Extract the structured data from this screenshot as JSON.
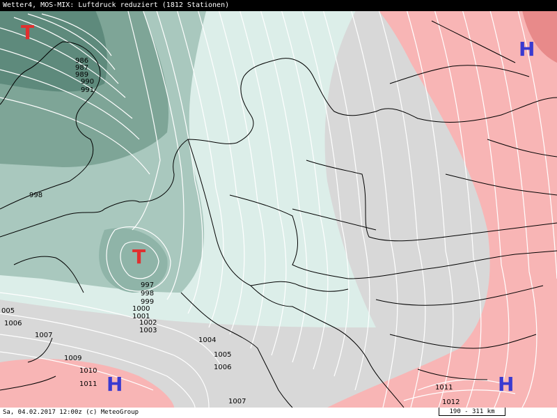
{
  "title": "Wetter4, MOS-MIX: Luftdruck reduziert (1812 Stationen)",
  "footer": "Sa, 04.02.2017 12:00z (c) MeteoGroup",
  "scale": "190 - 311 km",
  "colors": {
    "low_dark": "#5e8a7c",
    "low_mid": "#8fb4a8",
    "low_light": "#dceee9",
    "neutral": "#d8d8d8",
    "high": "#f8b5b5",
    "isobar": "#ffffff",
    "low_marker": "#e03030",
    "high_marker": "#3a3ad0"
  },
  "pressure_centers": [
    {
      "type": "T",
      "label": "T"
    },
    {
      "type": "T",
      "label": "T"
    },
    {
      "type": "H",
      "label": "H"
    },
    {
      "type": "H",
      "label": "H"
    },
    {
      "type": "H",
      "label": "H"
    }
  ],
  "isobar_labels": [
    "986",
    "987",
    "989",
    "990",
    "991",
    "998",
    "997",
    "998",
    "999",
    "1000",
    "1001",
    "1002",
    "1003",
    "1004",
    "1005",
    "1006",
    "1007",
    "1009",
    "1010",
    "1011",
    "1007",
    "1011",
    "1012",
    "005",
    "1006"
  ]
}
